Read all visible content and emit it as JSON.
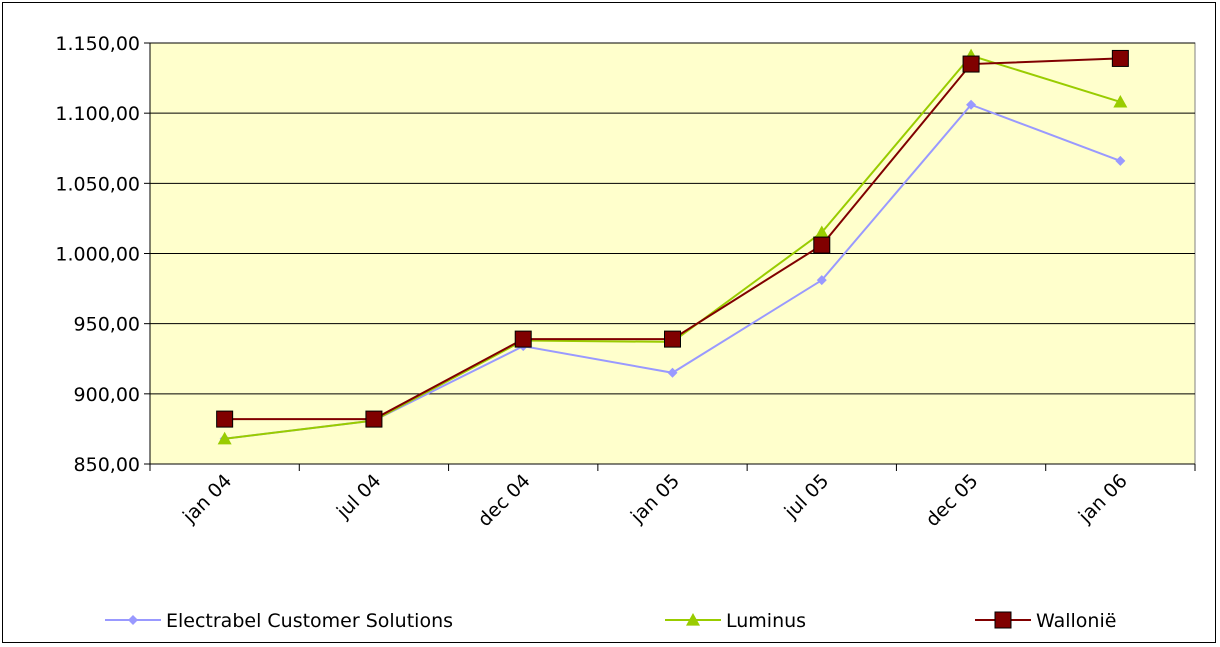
{
  "chart_data": {
    "type": "line",
    "title": "",
    "xlabel": "",
    "ylabel": "",
    "categories": [
      "jan 04",
      "jul 04",
      "dec 04",
      "jan 05",
      "jul 05",
      "dec 05",
      "jan 06"
    ],
    "ylim": [
      850,
      1150
    ],
    "yticks": [
      850,
      900,
      950,
      1000,
      1050,
      1100,
      1150
    ],
    "ytick_labels": [
      "850,00",
      "900,00",
      "950,00",
      "1.000,00",
      "1.050,00",
      "1.100,00",
      "1.150,00"
    ],
    "grid": "horizontal",
    "plot_background": "#FFFFCC",
    "legend_position": "bottom",
    "series": [
      {
        "name": "Electrabel Customer Solutions",
        "color": "#9999FF",
        "marker": "diamond",
        "values": [
          868,
          881,
          934,
          915,
          981,
          1106,
          1066
        ]
      },
      {
        "name": "Luminus",
        "color": "#99CC00",
        "marker": "triangle",
        "values": [
          868,
          881,
          938,
          937,
          1015,
          1141,
          1108
        ]
      },
      {
        "name": "Wallonië",
        "color": "#800000",
        "marker": "square",
        "values": [
          882,
          882,
          939,
          939,
          1006,
          1135,
          1139
        ]
      }
    ]
  }
}
